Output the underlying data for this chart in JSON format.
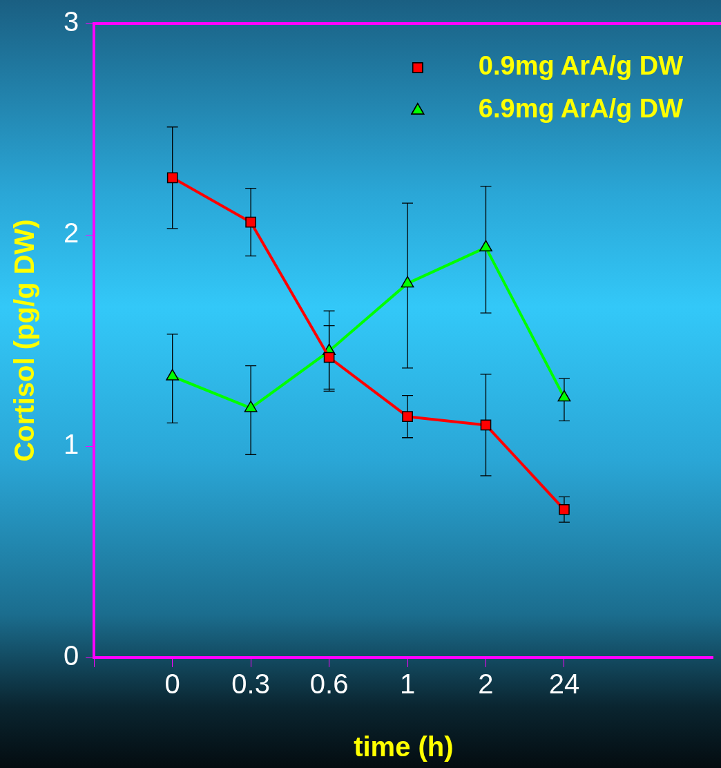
{
  "chart_data": {
    "type": "line",
    "xlabel": "time (h)",
    "ylabel": "Cortisol (pg/g DW)",
    "categories": [
      "0",
      "0.3",
      "0.6",
      "1",
      "2",
      "24"
    ],
    "ylim": [
      0,
      3
    ],
    "yticks": [
      0,
      1,
      2,
      3
    ],
    "grid": false,
    "legend": "top right",
    "series": [
      {
        "name": "0.9mg ArA/g DW",
        "color": "#ff0000",
        "marker": "square",
        "values": [
          2.27,
          2.06,
          1.42,
          1.14,
          1.1,
          0.7
        ],
        "errors": [
          [
            2.03,
            2.51
          ],
          [
            1.9,
            2.22
          ],
          [
            1.26,
            1.57
          ],
          [
            1.04,
            1.24
          ],
          [
            0.86,
            1.34
          ],
          [
            0.64,
            0.76
          ]
        ]
      },
      {
        "name": "6.9mg ArA/g DW",
        "color": "#00ff00",
        "marker": "triangle",
        "values": [
          1.33,
          1.18,
          1.45,
          1.77,
          1.94,
          1.23
        ],
        "errors": [
          [
            1.11,
            1.53
          ],
          [
            0.96,
            1.38
          ],
          [
            1.27,
            1.64
          ],
          [
            1.37,
            2.15
          ],
          [
            1.63,
            2.23
          ],
          [
            1.12,
            1.32
          ]
        ]
      }
    ]
  }
}
